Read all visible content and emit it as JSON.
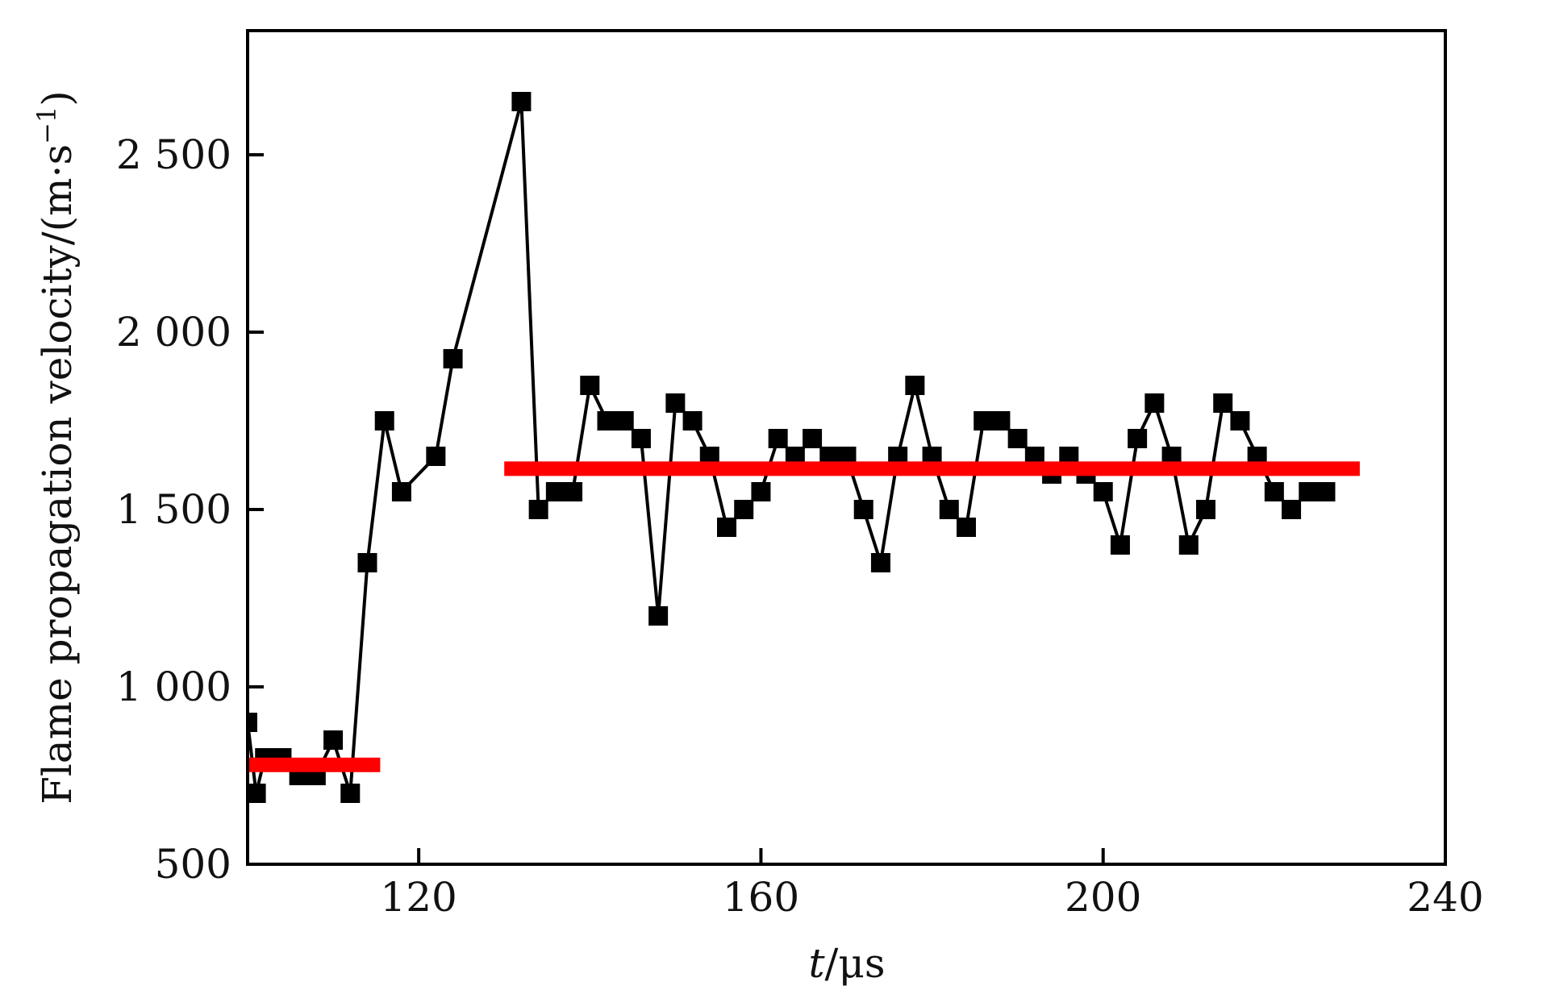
{
  "chart_data": {
    "type": "line",
    "xlabel_italic": "t",
    "xlabel_rest": "/μs",
    "ylabel_main": "Flame propagation velocity/(m·s",
    "ylabel_sup": "−1",
    "ylabel_close": ")",
    "xlim": [
      100,
      240
    ],
    "ylim": [
      500,
      2850
    ],
    "xticks": [
      120,
      160,
      200,
      240
    ],
    "xtick_labels": [
      "120",
      "160",
      "200",
      "240"
    ],
    "yticks": [
      500,
      1000,
      1500,
      2000,
      2500
    ],
    "ytick_labels": [
      "500",
      "1 000",
      "1 500",
      "2 000",
      "2 500"
    ],
    "grid": false,
    "series": [
      {
        "marker": "square",
        "color": "#000000",
        "x": [
          100,
          101,
          102,
          104,
          106,
          108,
          110,
          112,
          114,
          116,
          118,
          122,
          124,
          132,
          134,
          136,
          138,
          140,
          142,
          144,
          146,
          148,
          150,
          152,
          154,
          156,
          158,
          160,
          162,
          164,
          166,
          168,
          170,
          172,
          174,
          176,
          178,
          180,
          182,
          184,
          186,
          188,
          190,
          192,
          194,
          196,
          198,
          200,
          202,
          204,
          206,
          208,
          210,
          212,
          214,
          216,
          218,
          220,
          222,
          224,
          226
        ],
        "y": [
          900,
          700,
          800,
          800,
          750,
          750,
          850,
          700,
          1350,
          1750,
          1550,
          1650,
          1925,
          2650,
          1500,
          1550,
          1550,
          1850,
          1750,
          1750,
          1700,
          1200,
          1800,
          1750,
          1650,
          1450,
          1500,
          1550,
          1700,
          1650,
          1700,
          1650,
          1650,
          1500,
          1350,
          1650,
          1850,
          1650,
          1500,
          1450,
          1750,
          1750,
          1700,
          1650,
          1600,
          1650,
          1600,
          1550,
          1400,
          1700,
          1800,
          1650,
          1400,
          1500,
          1800,
          1750,
          1650,
          1550,
          1500,
          1550,
          1550
        ]
      }
    ],
    "mean_lines": [
      {
        "x": [
          100,
          115.5
        ],
        "y": 780,
        "color": "#ff0000"
      },
      {
        "x": [
          130,
          230
        ],
        "y": 1615,
        "color": "#ff0000"
      }
    ]
  }
}
